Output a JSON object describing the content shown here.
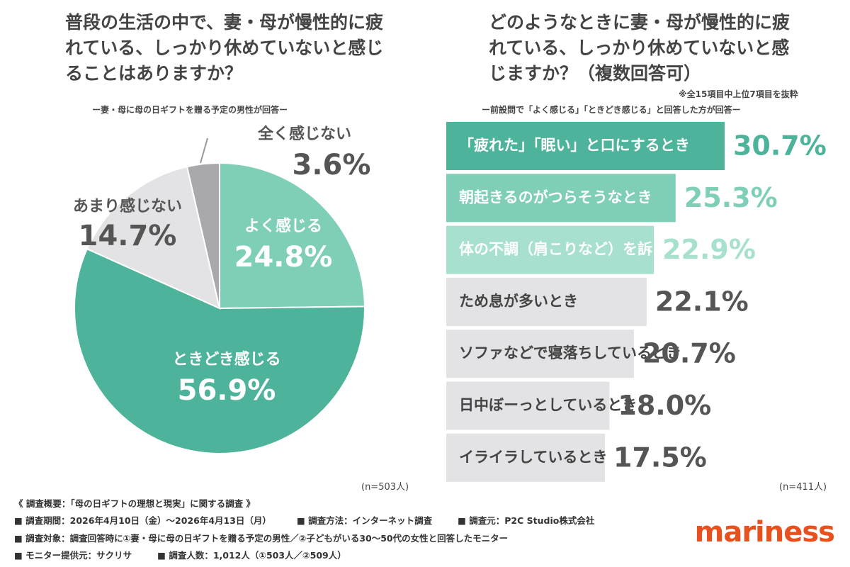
{
  "chart_data": [
    {
      "type": "pie",
      "title": "普段の生活の中で、妻・母が慢性的に疲れている、しっかり休めていないと感じることはありますか？",
      "subtitle": "ー妻・母に母の日ギフトを贈る予定の男性が回答ー",
      "categories": [
        "よく感じる",
        "ときどき感じる",
        "あまり感じない",
        "全く感じない"
      ],
      "values": [
        24.8,
        56.9,
        14.7,
        3.6
      ],
      "value_labels": [
        "24.8%",
        "56.9%",
        "14.7%",
        "3.6%"
      ],
      "colors": [
        "#7fcfb8",
        "#4db39a",
        "#e3e2e5",
        "#a9a8ab"
      ],
      "note": "(n=503人)"
    },
    {
      "type": "bar",
      "orientation": "horizontal",
      "title": "どのようなときに妻・母が慢性的に疲れている、しっかり休めていないと感じますか？（複数回答可）",
      "annotation": "※全15項目中上位7項目を抜粋",
      "subtitle": "ー前設問で「よく感じる」「ときどき感じる」と回答した方が回答ー",
      "categories": [
        "「疲れた」「眠い」と口にするとき",
        "朝起きるのがつらそうなとき",
        "体の不調（肩こりなど）を訴えるとき",
        "ため息が多いとき",
        "ソファなどで寝落ちしているとき",
        "日中ぼーっとしているとき",
        "イライラしているとき"
      ],
      "values": [
        30.7,
        25.3,
        22.9,
        22.1,
        20.7,
        18.0,
        17.5
      ],
      "value_labels": [
        "30.7%",
        "25.3%",
        "22.9%",
        "22.1%",
        "20.7%",
        "18.0%",
        "17.5%"
      ],
      "colors": [
        "#4db39a",
        "#7fcfb8",
        "#a8e0d0",
        "#e3e2e5",
        "#e3e2e5",
        "#e3e2e5",
        "#e3e2e5"
      ],
      "note": "(n=411人)"
    }
  ],
  "footer": {
    "rows": [
      [
        "《 調査概要：「母の日ギフトの理想と現実」に関する調査 》"
      ],
      [
        "■ 調査期間：2026年4月10日（金）〜2026年4月13日（月）",
        "■ 調査方法：インターネット調査",
        "■ 調査元：P2C Studio株式会社"
      ],
      [
        "■ 調査対象：調査回答時に①妻・母に母の日ギフトを贈る予定の男性／②子どもがいる30〜50代の女性と回答したモニター"
      ],
      [
        "■ モニター提供元：サクリサ",
        "■ 調査人数：1,012人（①503人／②509人）"
      ]
    ],
    "logo": "mariness"
  }
}
